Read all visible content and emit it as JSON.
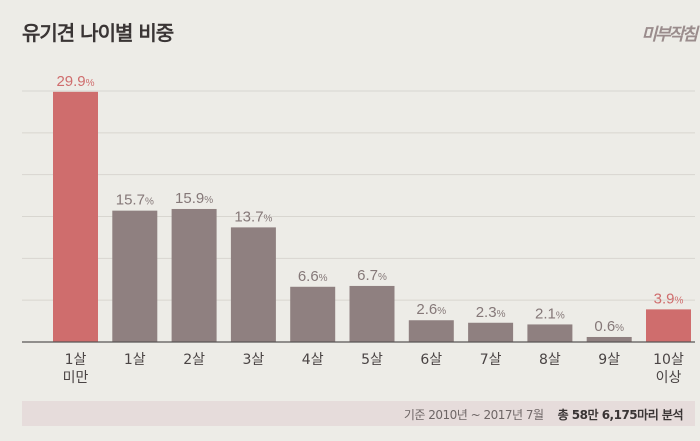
{
  "title": "유기견 나이별 비중",
  "logo_text": "미부작침",
  "footer": {
    "period": "기준 2010년 ~ 2017년 7월",
    "total": "총 58만 6,175마리 분석"
  },
  "chart_data": {
    "type": "bar",
    "title": "유기견 나이별 비중",
    "categories": [
      "1살\n미만",
      "1살",
      "2살",
      "3살",
      "4살",
      "5살",
      "6살",
      "7살",
      "8살",
      "9살",
      "10살\n이상"
    ],
    "values": [
      29.9,
      15.7,
      15.9,
      13.7,
      6.6,
      6.7,
      2.6,
      2.3,
      2.1,
      0.6,
      3.9
    ],
    "data_labels": [
      "29.9%",
      "15.7%",
      "15.9%",
      "13.7%",
      "6.6%",
      "6.7%",
      "2.6%",
      "2.3%",
      "2.1%",
      "0.6%",
      "3.9%"
    ],
    "highlighted": [
      true,
      false,
      false,
      false,
      false,
      false,
      false,
      false,
      false,
      false,
      true
    ],
    "colors": {
      "highlight": "#cf6d6d",
      "normal": "#8f8080",
      "highlight_label": "#cf6d6d",
      "normal_label": "#857878"
    },
    "xlabel": "",
    "ylabel": "",
    "ylim": [
      0,
      30
    ],
    "grid": true,
    "grid_step": 5
  }
}
